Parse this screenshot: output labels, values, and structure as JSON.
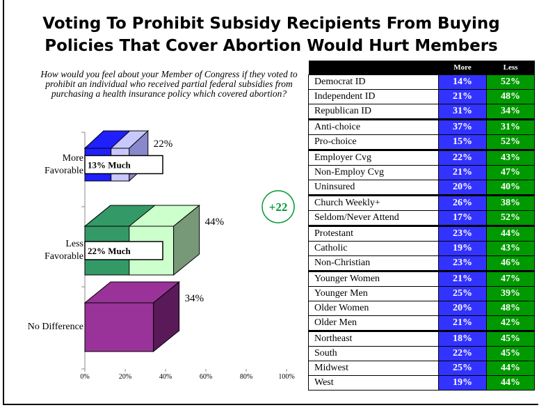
{
  "title": "Voting To Prohibit Subsidy Recipients From Buying Policies That Cover Abortion Would Hurt Members",
  "question": "How would you feel about your Member of Congress if they voted to prohibit an individual who received partial federal subsidies from purchasing a health insurance policy which covered abortion?",
  "badge": "+22",
  "chart_data": {
    "type": "bar",
    "orientation": "horizontal",
    "categories": [
      "More\nFavorable",
      "Less\nFavorable",
      "No Difference"
    ],
    "values": [
      22,
      44,
      34
    ],
    "value_labels": [
      "22%",
      "44%",
      "34%"
    ],
    "much_values": [
      13,
      22,
      null
    ],
    "much_labels": [
      "13% Much",
      "22% Much",
      null
    ],
    "colors": [
      "#2020ff",
      "#339966",
      "#993399"
    ],
    "light_colors": [
      "#c8c8ff",
      "#ccffcc",
      "#993399"
    ],
    "xlim": [
      0,
      100
    ],
    "xticks": [
      {
        "value": 0,
        "label": "0%"
      },
      {
        "value": 20,
        "label": "20%"
      },
      {
        "value": 40,
        "label": "40%"
      },
      {
        "value": 60,
        "label": "60%"
      },
      {
        "value": 80,
        "label": "80%"
      },
      {
        "value": 100,
        "label": "100%"
      }
    ]
  },
  "table": {
    "header": [
      "More",
      "Less"
    ],
    "rows": [
      [
        "Democrat ID",
        "14%",
        "52%"
      ],
      [
        "Independent ID",
        "21%",
        "48%"
      ],
      [
        "Republican ID",
        "31%",
        "34%"
      ],
      [
        "Anti-choice",
        "37%",
        "31%"
      ],
      [
        "Pro-choice",
        "15%",
        "52%"
      ],
      [
        "Employer Cvg",
        "22%",
        "43%"
      ],
      [
        "Non-Employ Cvg",
        "21%",
        "47%"
      ],
      [
        "Uninsured",
        "20%",
        "40%"
      ],
      [
        "Church Weekly+",
        "26%",
        "38%"
      ],
      [
        "Seldom/Never Attend",
        "17%",
        "52%"
      ],
      [
        "Protestant",
        "23%",
        "44%"
      ],
      [
        "Catholic",
        "19%",
        "43%"
      ],
      [
        "Non-Christian",
        "23%",
        "46%"
      ],
      [
        "Younger Women",
        "21%",
        "47%"
      ],
      [
        "Younger Men",
        "25%",
        "39%"
      ],
      [
        "Older Women",
        "20%",
        "48%"
      ],
      [
        "Older Men",
        "21%",
        "42%"
      ],
      [
        "Northeast",
        "18%",
        "45%"
      ],
      [
        "South",
        "22%",
        "45%"
      ],
      [
        "Midwest",
        "25%",
        "44%"
      ],
      [
        "West",
        "19%",
        "44%"
      ]
    ]
  }
}
